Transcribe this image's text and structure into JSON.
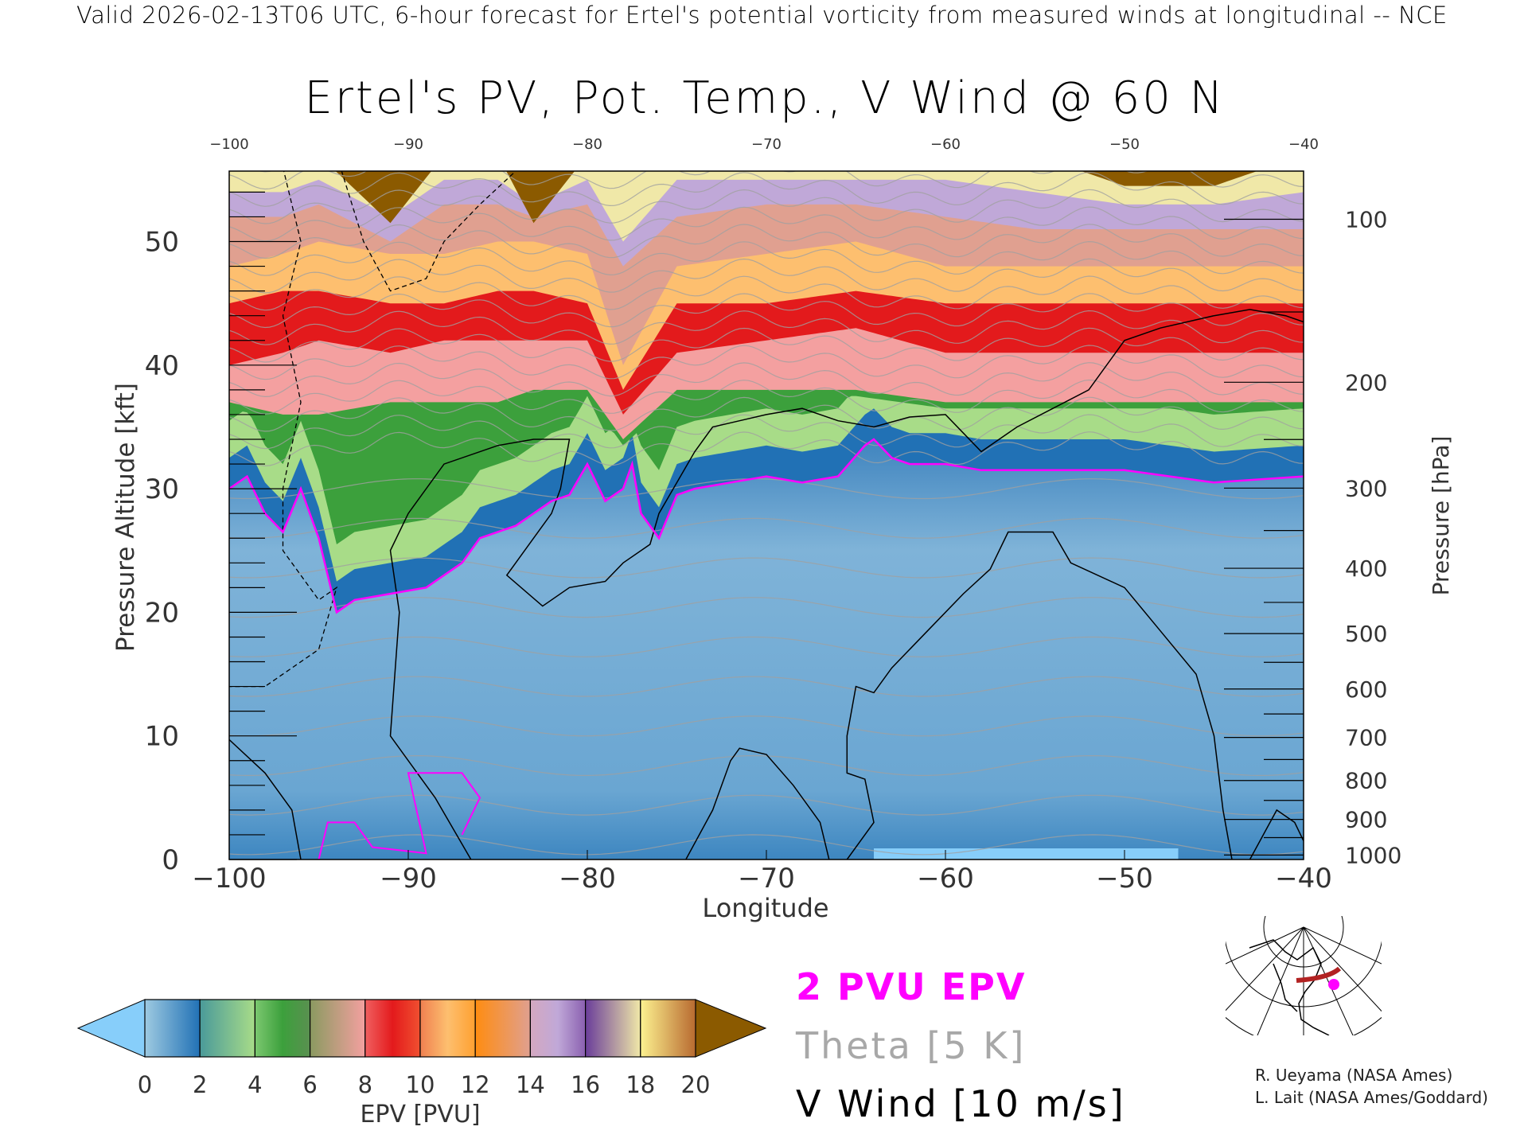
{
  "header": "Valid 2026-02-13T06 UTC, 6-hour forecast for Ertel's potential vorticity from measured winds at longitudinal -- NCE",
  "chart_data": {
    "type": "heatmap",
    "title": "Ertel's PV, Pot. Temp., V Wind @ 60 N",
    "xlabel": "Longitude",
    "ylabel": "Pressure Altitude [kft]",
    "y2label": "Pressure [hPa]",
    "xlim": [
      -100,
      -40
    ],
    "ylim": [
      0,
      55.7
    ],
    "x_ticks": [
      -100,
      -90,
      -80,
      -70,
      -60,
      -50,
      -40
    ],
    "x_tick_labels": [
      "−100",
      "−90",
      "−80",
      "−70",
      "−60",
      "−50",
      "−40"
    ],
    "top_tick_labels": [
      "−100",
      "−90",
      "−80",
      "−70",
      "−60",
      "−50",
      "−40"
    ],
    "y_ticks": [
      0,
      10,
      20,
      30,
      40,
      50
    ],
    "y_tick_labels": [
      "0",
      "10",
      "20",
      "30",
      "40",
      "50"
    ],
    "pressure_ticks": [
      100,
      200,
      300,
      400,
      500,
      600,
      700,
      800,
      900,
      1000
    ],
    "pressure_tick_labels": [
      "100",
      "200",
      "300",
      "400",
      "500",
      "600",
      "700",
      "800",
      "900",
      "1000"
    ],
    "colorbar": {
      "label": "EPV [PVU]",
      "ticks": [
        "0",
        "2",
        "4",
        "6",
        "8",
        "10",
        "12",
        "14",
        "16",
        "18",
        "20"
      ],
      "under_color": "#87cefa",
      "over_color": "#8b5a00",
      "bands": [
        [
          "#9ecae1",
          "#2171b5"
        ],
        [
          "#4a9a9a",
          "#a8dc88"
        ],
        [
          "#7cc870",
          "#3ca03c",
          "#5a9050"
        ],
        [
          "#8a9a60",
          "#f4a0a0"
        ],
        [
          "#f06060",
          "#e31a1c",
          "#f05030"
        ],
        [
          "#f08050",
          "#fdbf6f",
          "#ffa030"
        ],
        [
          "#ff8c10",
          "#e0a090"
        ],
        [
          "#d4a8c0",
          "#c0a8d8",
          "#8a60b0"
        ],
        [
          "#6a3d9a",
          "#f0e8a8"
        ],
        [
          "#fdf290",
          "#b86a30"
        ]
      ]
    },
    "tropopause_2pvu": {
      "lon": [
        -100,
        -99,
        -98,
        -97,
        -96,
        -95,
        -94,
        -93,
        -91,
        -89,
        -87,
        -86,
        -84,
        -82,
        -81,
        -80,
        -79,
        -78,
        -77.5,
        -77,
        -76,
        -75,
        -74,
        -72,
        -70,
        -68,
        -66,
        -64.5,
        -64,
        -63,
        -62,
        -60,
        -58,
        -55,
        -50,
        -45,
        -40
      ],
      "kft": [
        30,
        31,
        28,
        26.5,
        30,
        26,
        20,
        21,
        21.5,
        22,
        24,
        26,
        27,
        29,
        29.5,
        32,
        29,
        30,
        32,
        28,
        26,
        29.5,
        30,
        30.5,
        31,
        30.5,
        31,
        33.5,
        34,
        32.5,
        32,
        32,
        31.5,
        31.5,
        31.5,
        30.5,
        31
      ]
    },
    "pv_contours_kft": {
      "lon": [
        -100,
        -97,
        -95,
        -91,
        -88,
        -85,
        -83,
        -80,
        -78,
        -75,
        -70,
        -65,
        -60,
        -55,
        -50,
        -45,
        -40
      ],
      "8": [
        37,
        36,
        36,
        37,
        37,
        37,
        38,
        38,
        34,
        38,
        38,
        38,
        37,
        37,
        37,
        37,
        37
      ],
      "10": [
        40,
        41,
        42,
        41,
        42,
        42,
        42,
        42,
        36,
        41,
        42,
        43,
        41,
        41,
        41,
        41,
        41
      ],
      "12": [
        45,
        46,
        46,
        45,
        45,
        46,
        46,
        45,
        38,
        45,
        45,
        46,
        45,
        45,
        45,
        45,
        45
      ],
      "14": [
        48,
        49,
        50,
        49,
        49,
        50,
        50,
        49,
        40,
        48,
        49,
        50,
        48,
        48,
        48,
        48,
        48
      ],
      "16": [
        52,
        52,
        53,
        50,
        53,
        53,
        52,
        53,
        48,
        52,
        53,
        53,
        52,
        51,
        51,
        51,
        51
      ],
      "18": [
        54,
        54,
        55,
        52,
        55,
        55,
        53,
        55,
        50,
        55,
        55,
        55,
        55,
        54,
        53,
        53,
        54
      ],
      "20": [
        57,
        57,
        57,
        51.5,
        57,
        57,
        51.5,
        57,
        57,
        57,
        57,
        57,
        57,
        57,
        54.5,
        54.5,
        57
      ]
    },
    "v_wind_zero_contours": [
      [
        [
          -100,
          9.7
        ],
        [
          -98,
          7
        ],
        [
          -96.5,
          4
        ],
        [
          -96,
          0
        ]
      ],
      [
        [
          -86.5,
          0
        ],
        [
          -88.5,
          5
        ],
        [
          -91,
          10
        ],
        [
          -90.5,
          20
        ],
        [
          -91,
          25
        ],
        [
          -90,
          28
        ],
        [
          -88,
          32
        ],
        [
          -85,
          33.5
        ],
        [
          -83,
          34
        ],
        [
          -81,
          34
        ],
        [
          -81.5,
          30
        ],
        [
          -82,
          28
        ],
        [
          -83,
          26
        ],
        [
          -84,
          24
        ],
        [
          -84.5,
          23
        ],
        [
          -82.5,
          20.5
        ],
        [
          -81,
          22
        ],
        [
          -79,
          22.5
        ],
        [
          -78,
          24
        ],
        [
          -76.5,
          25.5
        ],
        [
          -76,
          28
        ],
        [
          -74,
          33
        ],
        [
          -73,
          35
        ],
        [
          -71.5,
          35.5
        ],
        [
          -70,
          36
        ],
        [
          -68,
          36.5
        ],
        [
          -66,
          35.5
        ],
        [
          -64,
          35
        ],
        [
          -62,
          35.8
        ],
        [
          -60,
          36
        ],
        [
          -59,
          34.5
        ],
        [
          -58,
          33
        ],
        [
          -56,
          35
        ],
        [
          -54,
          36.5
        ],
        [
          -52,
          38
        ],
        [
          -50,
          42
        ],
        [
          -48,
          43
        ],
        [
          -45,
          44
        ],
        [
          -43,
          44.5
        ],
        [
          -41,
          44
        ],
        [
          -40,
          43.5
        ]
      ],
      [
        [
          -74.5,
          0
        ],
        [
          -73,
          4
        ],
        [
          -72,
          8
        ],
        [
          -71.5,
          9
        ],
        [
          -70,
          8.5
        ],
        [
          -68.5,
          6
        ],
        [
          -67,
          3
        ],
        [
          -66.5,
          0
        ]
      ],
      [
        [
          -65.5,
          0
        ],
        [
          -64,
          3
        ],
        [
          -64.5,
          6.5
        ],
        [
          -65.5,
          7
        ],
        [
          -65.5,
          10
        ],
        [
          -65,
          14
        ],
        [
          -64,
          13.5
        ],
        [
          -63,
          15.5
        ],
        [
          -61,
          18.5
        ],
        [
          -59,
          21.5
        ],
        [
          -57.5,
          23.5
        ],
        [
          -56.5,
          26.5
        ],
        [
          -54,
          26.5
        ],
        [
          -53,
          24
        ],
        [
          -50,
          22
        ],
        [
          -48,
          18.5
        ],
        [
          -46,
          15
        ],
        [
          -45,
          10
        ],
        [
          -44.5,
          4
        ],
        [
          -44,
          0
        ]
      ],
      [
        [
          -43,
          0
        ],
        [
          -41.5,
          4
        ],
        [
          -40.5,
          3
        ],
        [
          -40,
          1.5
        ]
      ]
    ],
    "v_wind_negative_contours": [
      [
        [
          -97,
          56
        ],
        [
          -96,
          50
        ],
        [
          -97,
          44
        ],
        [
          -96,
          37
        ],
        [
          -97,
          30
        ],
        [
          -97,
          25
        ],
        [
          -95,
          21
        ],
        [
          -94,
          22
        ],
        [
          -95,
          17
        ],
        [
          -98,
          14
        ],
        [
          -100,
          14
        ]
      ],
      [
        [
          -94,
          57
        ],
        [
          -92.5,
          50
        ],
        [
          -91,
          46
        ],
        [
          -89,
          47
        ],
        [
          -88,
          50
        ],
        [
          -86,
          53
        ],
        [
          -84,
          55.7
        ]
      ]
    ]
  },
  "legend": {
    "pv": "2 PVU EPV",
    "theta": "Theta [5 K]",
    "wind": "V Wind [10 m/s]",
    "pv_color": "#ff00ff",
    "theta_color": "#a8a8a8",
    "wind_color": "#000000"
  },
  "credits": [
    "R. Ueyama (NASA Ames)",
    "L. Lait (NASA Ames/Goddard)"
  ]
}
